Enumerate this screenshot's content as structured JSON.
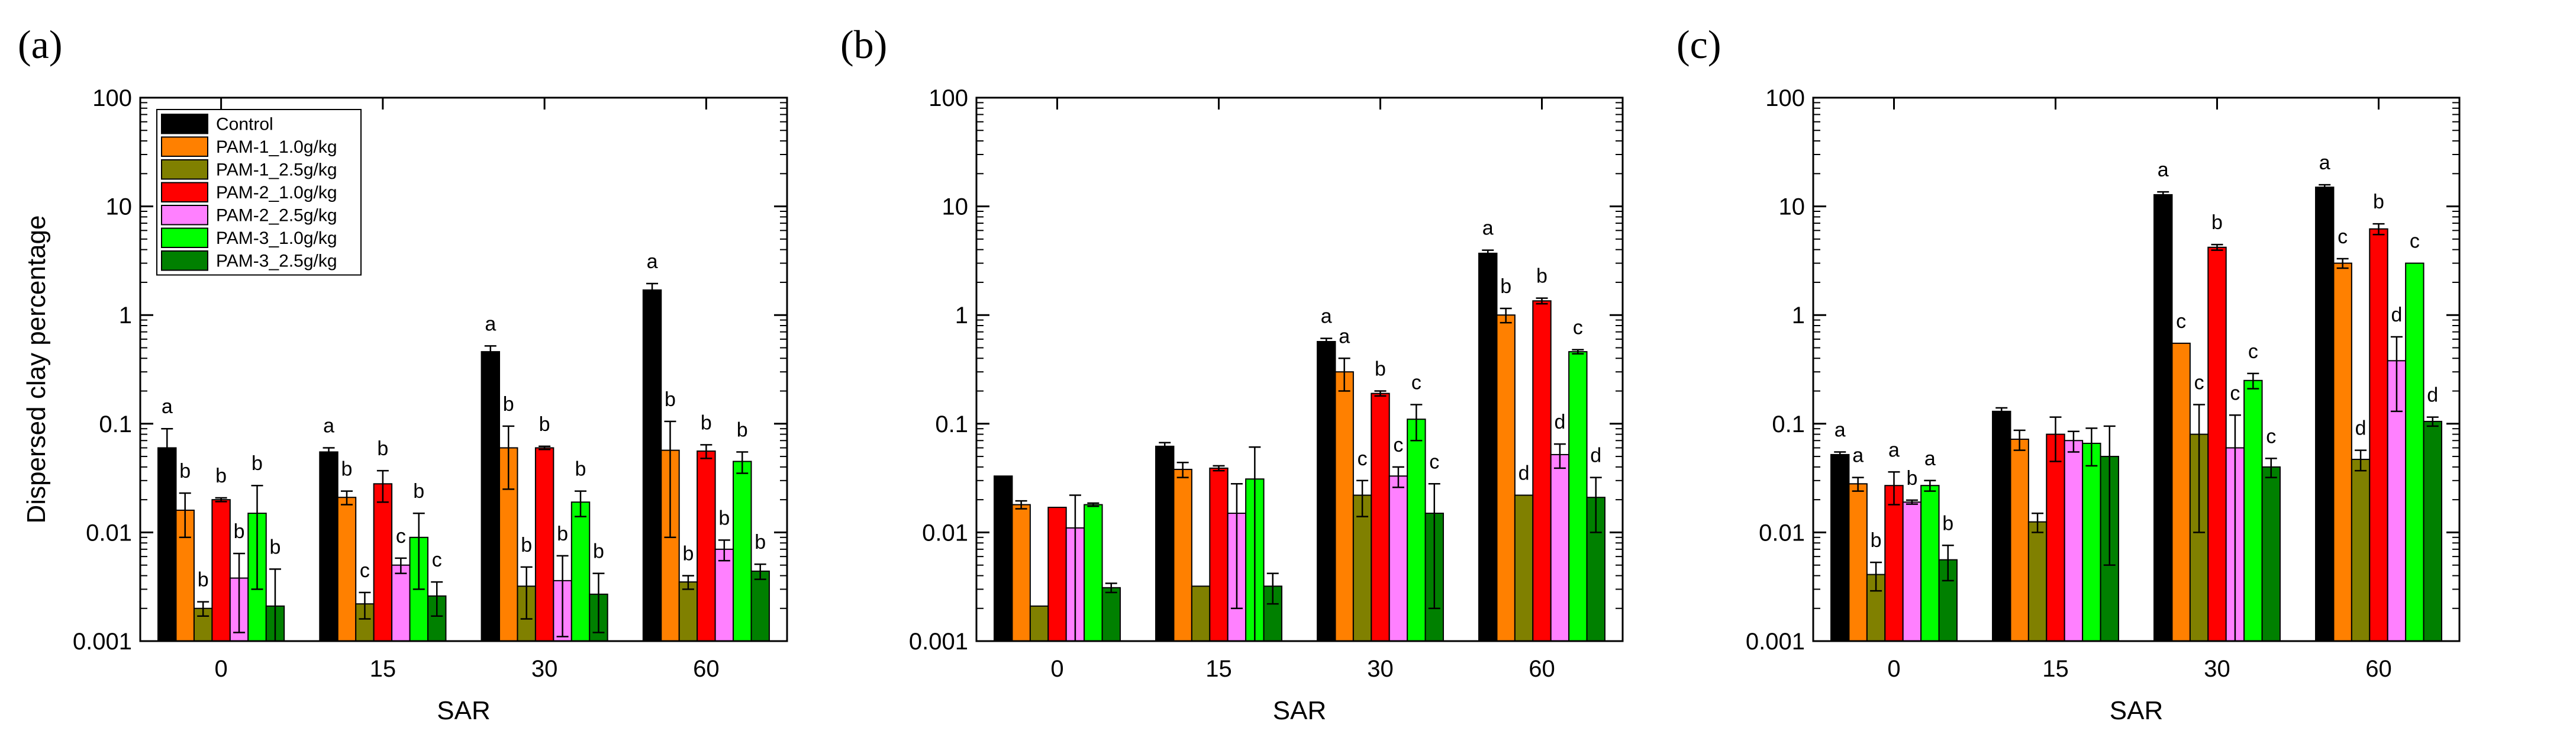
{
  "chart_data": [
    {
      "type": "bar",
      "panel_label": "(a)",
      "xlabel": "SAR",
      "ylabel": "Dispersed clay percentage",
      "yscale": "log",
      "ylim": [
        0.001,
        100
      ],
      "ytick_labels": [
        "0.001",
        "0.01",
        "0.1",
        "1",
        "10",
        "100"
      ],
      "categories": [
        "0",
        "15",
        "30",
        "60"
      ],
      "legend": {
        "location": "top-left"
      },
      "series": [
        {
          "name": "Control",
          "color": "#000000",
          "values": [
            0.06,
            0.055,
            0.46,
            1.7
          ],
          "errors": [
            0.03,
            0.005,
            0.06,
            0.25
          ],
          "letters": [
            "a",
            "a",
            "a",
            "a"
          ]
        },
        {
          "name": "PAM-1_1.0g/kg",
          "color": "#FF8000",
          "values": [
            0.016,
            0.021,
            0.06,
            0.057
          ],
          "errors": [
            0.007,
            0.003,
            0.035,
            0.048
          ],
          "letters": [
            "b",
            "b",
            "b",
            "b"
          ]
        },
        {
          "name": "PAM-1_2.5g/kg",
          "color": "#808000",
          "values": [
            0.002,
            0.0022,
            0.0032,
            0.0035
          ],
          "errors": [
            0.0003,
            0.0006,
            0.0016,
            0.0005
          ],
          "letters": [
            "b",
            "c",
            "b",
            "b"
          ]
        },
        {
          "name": "PAM-2_1.0g/kg",
          "color": "#FF0000",
          "values": [
            0.02,
            0.028,
            0.06,
            0.056
          ],
          "errors": [
            0.0008,
            0.009,
            0.002,
            0.008
          ],
          "letters": [
            "b",
            "b",
            "b",
            "b"
          ]
        },
        {
          "name": "PAM-2_2.5g/kg",
          "color": "#FF80FF",
          "values": [
            0.0038,
            0.005,
            0.0036,
            0.007
          ],
          "errors": [
            0.0026,
            0.0008,
            0.0025,
            0.0015
          ],
          "letters": [
            "b",
            "c",
            "b",
            "b"
          ]
        },
        {
          "name": "PAM-3_1.0g/kg",
          "color": "#00FF00",
          "values": [
            0.015,
            0.009,
            0.019,
            0.045
          ],
          "errors": [
            0.012,
            0.006,
            0.005,
            0.01
          ],
          "letters": [
            "b",
            "b",
            "b",
            "b"
          ]
        },
        {
          "name": "PAM-3_2.5g/kg",
          "color": "#008000",
          "values": [
            0.0021,
            0.0026,
            0.0027,
            0.0044
          ],
          "errors": [
            0.0025,
            0.0009,
            0.0015,
            0.0007
          ],
          "letters": [
            "b",
            "c",
            "b",
            "b"
          ]
        }
      ]
    },
    {
      "type": "bar",
      "panel_label": "(b)",
      "xlabel": "SAR",
      "ylabel": "",
      "yscale": "log",
      "ylim": [
        0.001,
        100
      ],
      "ytick_labels": [
        "0.001",
        "0.01",
        "0.1",
        "1",
        "10",
        "100"
      ],
      "categories": [
        "0",
        "15",
        "30",
        "60"
      ],
      "series": [
        {
          "name": "Control",
          "color": "#000000",
          "values": [
            0.033,
            0.062,
            0.57,
            3.7
          ],
          "errors": [
            0.0,
            0.005,
            0.04,
            0.25
          ],
          "letters": [
            "",
            "",
            "a",
            "a"
          ]
        },
        {
          "name": "PAM-1_1.0g/kg",
          "color": "#FF8000",
          "values": [
            0.018,
            0.038,
            0.3,
            1.0
          ],
          "errors": [
            0.0015,
            0.006,
            0.1,
            0.15
          ],
          "letters": [
            "",
            "",
            "a",
            "b"
          ]
        },
        {
          "name": "PAM-1_2.5g/kg",
          "color": "#808000",
          "values": [
            0.0021,
            0.0032,
            0.022,
            0.022
          ],
          "errors": [
            0.0,
            0.0,
            0.008,
            0.0
          ],
          "letters": [
            "",
            "",
            "c",
            "d"
          ]
        },
        {
          "name": "PAM-2_1.0g/kg",
          "color": "#FF0000",
          "values": [
            0.017,
            0.039,
            0.19,
            1.35
          ],
          "errors": [
            0.0,
            0.002,
            0.01,
            0.08
          ],
          "letters": [
            "",
            "",
            "b",
            "b"
          ]
        },
        {
          "name": "PAM-2_2.5g/kg",
          "color": "#FF80FF",
          "values": [
            0.011,
            0.015,
            0.033,
            0.052
          ],
          "errors": [
            0.011,
            0.013,
            0.007,
            0.013
          ],
          "letters": [
            "",
            "",
            "c",
            "d"
          ]
        },
        {
          "name": "PAM-3_1.0g/kg",
          "color": "#00FF00",
          "values": [
            0.018,
            0.031,
            0.11,
            0.46
          ],
          "errors": [
            0.0006,
            0.03,
            0.04,
            0.02
          ],
          "letters": [
            "",
            "",
            "c",
            "c"
          ]
        },
        {
          "name": "PAM-3_2.5g/kg",
          "color": "#008000",
          "values": [
            0.0031,
            0.0032,
            0.015,
            0.021
          ],
          "errors": [
            0.0003,
            0.001,
            0.013,
            0.011
          ],
          "letters": [
            "",
            "",
            "c",
            "d"
          ]
        }
      ]
    },
    {
      "type": "bar",
      "panel_label": "(c)",
      "xlabel": "SAR",
      "ylabel": "",
      "yscale": "log",
      "ylim": [
        0.001,
        100
      ],
      "ytick_labels": [
        "0.001",
        "0.01",
        "0.1",
        "1",
        "10",
        "100"
      ],
      "categories": [
        "0",
        "15",
        "30",
        "60"
      ],
      "series": [
        {
          "name": "Control",
          "color": "#000000",
          "values": [
            0.052,
            0.13,
            12.8,
            15.0
          ],
          "errors": [
            0.003,
            0.01,
            0.8,
            0.8
          ],
          "letters": [
            "a",
            "",
            "a",
            "a"
          ]
        },
        {
          "name": "PAM-1_1.0g/kg",
          "color": "#FF8000",
          "values": [
            0.028,
            0.072,
            0.55,
            3.0
          ],
          "errors": [
            0.004,
            0.015,
            0.0,
            0.3
          ],
          "letters": [
            "a",
            "",
            "c",
            "c"
          ]
        },
        {
          "name": "PAM-1_2.5g/kg",
          "color": "#808000",
          "values": [
            0.0041,
            0.0125,
            0.08,
            0.047
          ],
          "errors": [
            0.0012,
            0.0025,
            0.07,
            0.01
          ],
          "letters": [
            "b",
            "",
            "c",
            "d"
          ]
        },
        {
          "name": "PAM-2_1.0g/kg",
          "color": "#FF0000",
          "values": [
            0.027,
            0.08,
            4.2,
            6.2
          ],
          "errors": [
            0.009,
            0.035,
            0.25,
            0.7
          ],
          "letters": [
            "a",
            "",
            "b",
            "b"
          ]
        },
        {
          "name": "PAM-2_2.5g/kg",
          "color": "#FF80FF",
          "values": [
            0.019,
            0.07,
            0.06,
            0.38
          ],
          "errors": [
            0.0008,
            0.015,
            0.06,
            0.25
          ],
          "letters": [
            "b",
            "",
            "c",
            "d"
          ]
        },
        {
          "name": "PAM-3_1.0g/kg",
          "color": "#00FF00",
          "values": [
            0.027,
            0.066,
            0.25,
            3.0
          ],
          "errors": [
            0.003,
            0.025,
            0.04,
            0.0
          ],
          "letters": [
            "a",
            "",
            "c",
            "c"
          ]
        },
        {
          "name": "PAM-3_2.5g/kg",
          "color": "#008000",
          "values": [
            0.0056,
            0.05,
            0.04,
            0.105
          ],
          "errors": [
            0.002,
            0.045,
            0.008,
            0.01
          ],
          "letters": [
            "b",
            "",
            "c",
            "d"
          ]
        }
      ]
    }
  ]
}
